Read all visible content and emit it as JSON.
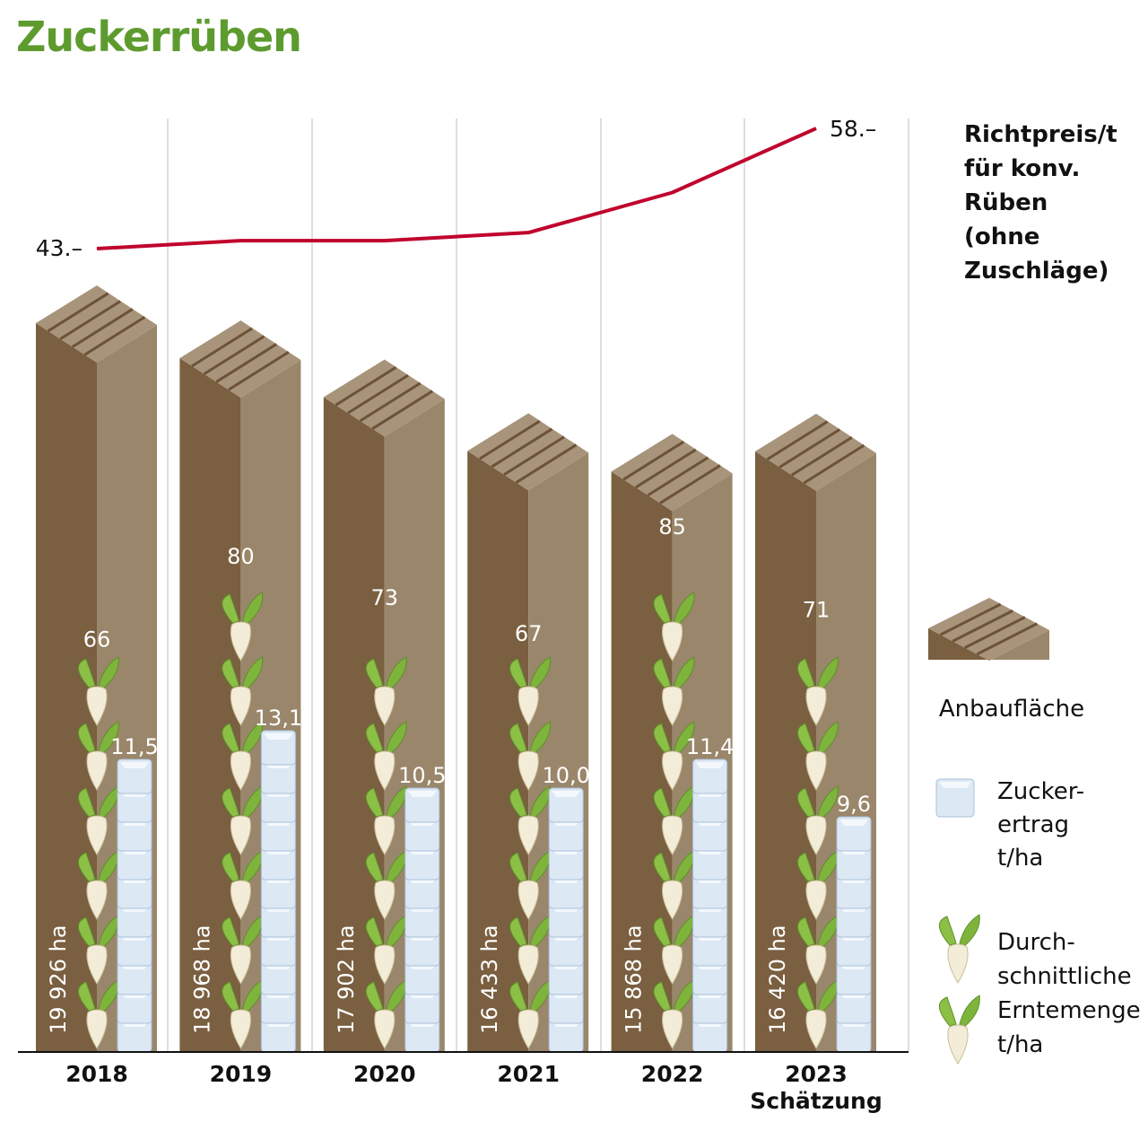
{
  "title": "Zuckerrüben",
  "colors": {
    "title": "#5d9b2f",
    "price_line": "#c0022c",
    "bar_front": "#7a5f40",
    "bar_side": "#9a866a",
    "bar_top": "#a8947a",
    "leaf": "#7fb43c",
    "cube": "#dce8f4"
  },
  "chart_data": {
    "type": "bar",
    "categories": [
      "2018",
      "2019",
      "2020",
      "2021",
      "2022",
      "2023"
    ],
    "category_note": {
      "2023": "Schätzung"
    },
    "series": [
      {
        "name": "Anbaufläche",
        "unit": "ha",
        "values": [
          19926,
          18968,
          17902,
          16433,
          15868,
          16420
        ],
        "labels": [
          "19 926 ha",
          "18 968 ha",
          "17 902 ha",
          "16 433 ha",
          "15 868 ha",
          "16 420 ha"
        ]
      },
      {
        "name": "Durchschnittliche Erntemenge t/ha",
        "values": [
          66,
          80,
          73,
          67,
          85,
          71
        ],
        "labels": [
          "66",
          "80",
          "73",
          "67",
          "85",
          "71"
        ]
      },
      {
        "name": "Zuckerertrag t/ha",
        "values": [
          11.5,
          13.1,
          10.5,
          10.0,
          11.4,
          9.6
        ],
        "labels": [
          "11,5",
          "13,1",
          "10,5",
          "10,0",
          "11,4",
          "9,6"
        ]
      },
      {
        "name": "Richtpreis/t für konv. Rüben (ohne Zuschläge)",
        "type": "line",
        "values": [
          43,
          44,
          44,
          45,
          50,
          58
        ],
        "end_labels": [
          "43.–",
          "58.–"
        ]
      }
    ],
    "grid": "vertical separators"
  },
  "legend": {
    "price": [
      "Richtpreis/t",
      "für konv.",
      "Rüben",
      " (ohne",
      "Zuschläge)"
    ],
    "area": "Anbaufläche",
    "sugar": [
      "Zucker-",
      "ertrag",
      "t/ha"
    ],
    "harvest": [
      "Durch-",
      "schnittliche",
      "Erntemenge",
      "t/ha"
    ]
  }
}
